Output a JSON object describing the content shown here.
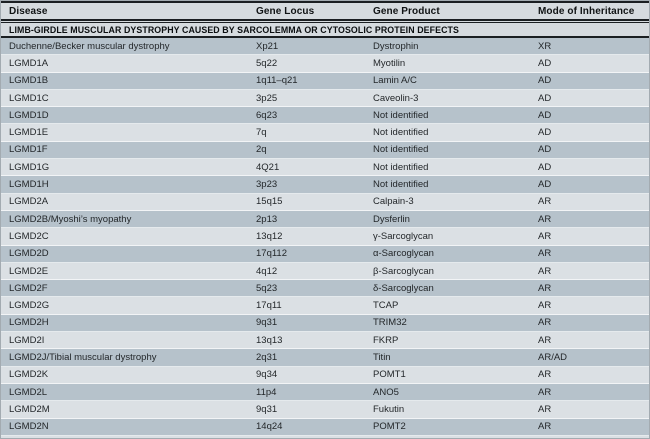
{
  "table": {
    "columns": [
      "Disease",
      "Gene Locus",
      "Gene Product",
      "Mode of Inheritance"
    ],
    "section_header": "LIMB-GIRDLE MUSCULAR DYSTROPHY CAUSED BY SARCOLEMMA OR CYTOSOLIC PROTEIN DEFECTS",
    "rows": [
      {
        "disease": "Duchenne/Becker muscular dystrophy",
        "locus": "Xp21",
        "product": "Dystrophin",
        "inheritance": "XR"
      },
      {
        "disease": "LGMD1A",
        "locus": "5q22",
        "product": "Myotilin",
        "inheritance": "AD"
      },
      {
        "disease": "LGMD1B",
        "locus": "1q11–q21",
        "product": "Lamin A/C",
        "inheritance": "AD"
      },
      {
        "disease": "LGMD1C",
        "locus": "3p25",
        "product": "Caveolin-3",
        "inheritance": "AD"
      },
      {
        "disease": "LGMD1D",
        "locus": "6q23",
        "product": "Not identified",
        "inheritance": "AD"
      },
      {
        "disease": "LGMD1E",
        "locus": "7q",
        "product": "Not identified",
        "inheritance": "AD"
      },
      {
        "disease": "LGMD1F",
        "locus": "2q",
        "product": "Not identified",
        "inheritance": "AD"
      },
      {
        "disease": "LGMD1G",
        "locus": "4Q21",
        "product": "Not identified",
        "inheritance": "AD"
      },
      {
        "disease": "LGMD1H",
        "locus": "3p23",
        "product": "Not identified",
        "inheritance": "AD"
      },
      {
        "disease": "LGMD2A",
        "locus": "15q15",
        "product": "Calpain-3",
        "inheritance": "AR"
      },
      {
        "disease": "LGMD2B/Myoshi’s myopathy",
        "locus": "2p13",
        "product": "Dysferlin",
        "inheritance": "AR"
      },
      {
        "disease": "LGMD2C",
        "locus": "13q12",
        "product": "γ-Sarcoglycan",
        "inheritance": "AR"
      },
      {
        "disease": "LGMD2D",
        "locus": "17q112",
        "product": "α-Sarcoglycan",
        "inheritance": "AR"
      },
      {
        "disease": "LGMD2E",
        "locus": "4q12",
        "product": "β-Sarcoglycan",
        "inheritance": "AR"
      },
      {
        "disease": "LGMD2F",
        "locus": "5q23",
        "product": "δ-Sarcoglycan",
        "inheritance": "AR"
      },
      {
        "disease": "LGMD2G",
        "locus": "17q11",
        "product": "TCAP",
        "inheritance": "AR"
      },
      {
        "disease": "LGMD2H",
        "locus": "9q31",
        "product": "TRIM32",
        "inheritance": "AR"
      },
      {
        "disease": "LGMD2I",
        "locus": "13q13",
        "product": "FKRP",
        "inheritance": "AR"
      },
      {
        "disease": "LGMD2J/Tibial muscular dystrophy",
        "locus": "2q31",
        "product": "Titin",
        "inheritance": "AR/AD"
      },
      {
        "disease": "LGMD2K",
        "locus": "9q34",
        "product": "POMT1",
        "inheritance": "AR"
      },
      {
        "disease": "LGMD2L",
        "locus": "11p4",
        "product": "ANO5",
        "inheritance": "AR"
      },
      {
        "disease": "LGMD2M",
        "locus": "9q31",
        "product": "Fukutin",
        "inheritance": "AR"
      },
      {
        "disease": "LGMD2N",
        "locus": "14q24",
        "product": "POMT2",
        "inheritance": "AR"
      }
    ]
  },
  "colors": {
    "row_dark": "#b6c2cb",
    "row_light": "#dbe0e4",
    "header_bg": "#d6dbdf",
    "rule": "#1b1f22"
  }
}
